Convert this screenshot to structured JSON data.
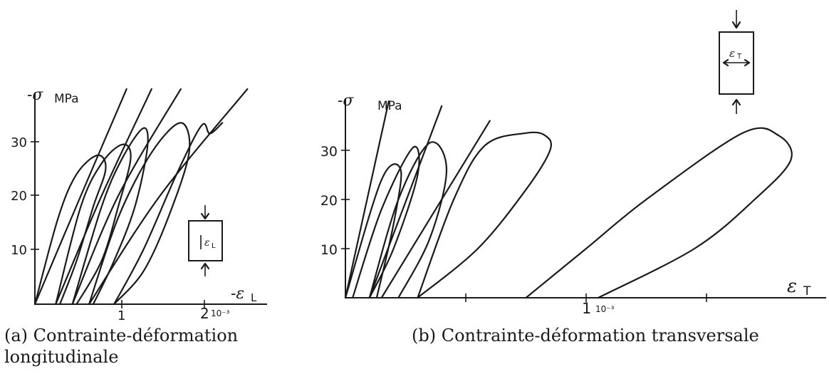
{
  "chart_data": [
    {
      "type": "line",
      "caption": "(a) Contrainte-déformation longitudinale",
      "ylabel": "-σ",
      "yunit": "MPa",
      "xlabel": "-ε",
      "xlabel_sub": "L",
      "x_ticks": [
        "1",
        "2"
      ],
      "x_multiplier": "10⁻³",
      "y_ticks": [
        "10",
        "20",
        "30"
      ],
      "inset_label": "ε",
      "inset_sub": "L",
      "xlim": [
        0,
        2.3
      ],
      "ylim": [
        0,
        40
      ],
      "series": [
        {
          "values": [
            [
              0,
              0
            ],
            [
              0.55,
              20
            ],
            [
              1.1,
              40
            ]
          ]
        },
        {
          "values": [
            [
              0.25,
              0
            ],
            [
              0.8,
              20
            ],
            [
              1.4,
              40
            ]
          ]
        },
        {
          "values": [
            [
              0.45,
              0
            ],
            [
              1.0,
              20
            ],
            [
              1.75,
              40
            ]
          ]
        },
        {
          "values": [
            [
              0.65,
              0
            ],
            [
              1.5,
              20
            ],
            [
              2.55,
              40
            ]
          ]
        },
        {
          "values": [
            [
              0,
              0
            ],
            [
              0.28,
              16
            ],
            [
              0.5,
              24
            ],
            [
              0.75,
              27.5
            ],
            [
              0.85,
              25
            ],
            [
              0.7,
              18
            ],
            [
              0.5,
              8
            ],
            [
              0.3,
              0
            ]
          ]
        },
        {
          "values": [
            [
              0.25,
              0
            ],
            [
              0.55,
              18
            ],
            [
              0.8,
              26
            ],
            [
              1.05,
              29.5
            ],
            [
              1.15,
              27
            ],
            [
              1.0,
              18
            ],
            [
              0.8,
              8
            ],
            [
              0.5,
              0
            ]
          ]
        },
        {
          "values": [
            [
              0.45,
              0
            ],
            [
              0.8,
              18
            ],
            [
              1.05,
              27
            ],
            [
              1.3,
              32.5
            ],
            [
              1.35,
              29
            ],
            [
              1.2,
              18
            ],
            [
              0.95,
              8
            ],
            [
              0.7,
              0
            ]
          ]
        },
        {
          "values": [
            [
              0.65,
              0
            ],
            [
              1.0,
              16
            ],
            [
              1.4,
              28
            ],
            [
              1.75,
              33.5
            ],
            [
              1.85,
              28
            ],
            [
              1.6,
              16
            ],
            [
              1.3,
              6
            ],
            [
              0.95,
              0
            ]
          ]
        },
        {
          "values": [
            [
              0.95,
              0
            ],
            [
              1.3,
              10
            ],
            [
              1.7,
              24
            ],
            [
              2.0,
              33
            ],
            [
              2.1,
              31.5
            ],
            [
              2.25,
              33.5
            ]
          ]
        }
      ]
    },
    {
      "type": "line",
      "caption": "(b) Contrainte-déformation transversale",
      "ylabel": "-σ",
      "yunit": "MPa",
      "xlabel": "ε",
      "xlabel_sub": "T",
      "x_ticks": [
        "1"
      ],
      "x_multiplier": "10⁻³",
      "y_ticks": [
        "10",
        "20",
        "30"
      ],
      "inset_label": "ε",
      "inset_sub": "T",
      "xlim": [
        0,
        2.05
      ],
      "ylim": [
        0,
        40
      ],
      "series": [
        {
          "values": [
            [
              0,
              0
            ],
            [
              0.18,
              40
            ]
          ]
        },
        {
          "values": [
            [
              0.1,
              0
            ],
            [
              0.4,
              39
            ]
          ]
        },
        {
          "values": [
            [
              0.15,
              0
            ],
            [
              0.6,
              36
            ]
          ]
        },
        {
          "values": [
            [
              0,
              0
            ],
            [
              0.15,
              24
            ],
            [
              0.23,
              26
            ],
            [
              0.2,
              15
            ],
            [
              0.13,
              0
            ]
          ]
        },
        {
          "values": [
            [
              0.03,
              0
            ],
            [
              0.15,
              18
            ],
            [
              0.28,
              30.5
            ],
            [
              0.3,
              25
            ],
            [
              0.2,
              10
            ],
            [
              0.1,
              0
            ]
          ]
        },
        {
          "values": [
            [
              0.1,
              0
            ],
            [
              0.22,
              20
            ],
            [
              0.35,
              31.5
            ],
            [
              0.42,
              26
            ],
            [
              0.35,
              12
            ],
            [
              0.22,
              0
            ]
          ]
        },
        {
          "values": [
            [
              0.3,
              0
            ],
            [
              0.45,
              20
            ],
            [
              0.58,
              31
            ],
            [
              0.75,
              33.5
            ],
            [
              0.83,
              33
            ],
            [
              0.85,
              30
            ],
            [
              0.75,
              22
            ],
            [
              0.55,
              10
            ],
            [
              0.3,
              0
            ]
          ]
        },
        {
          "values": [
            [
              0.75,
              0
            ],
            [
              1.0,
              10
            ],
            [
              1.25,
              20
            ],
            [
              1.65,
              33.5
            ],
            [
              1.8,
              33
            ],
            [
              1.85,
              28
            ],
            [
              1.7,
              20
            ],
            [
              1.45,
              10
            ],
            [
              1.05,
              0
            ]
          ]
        }
      ]
    }
  ]
}
